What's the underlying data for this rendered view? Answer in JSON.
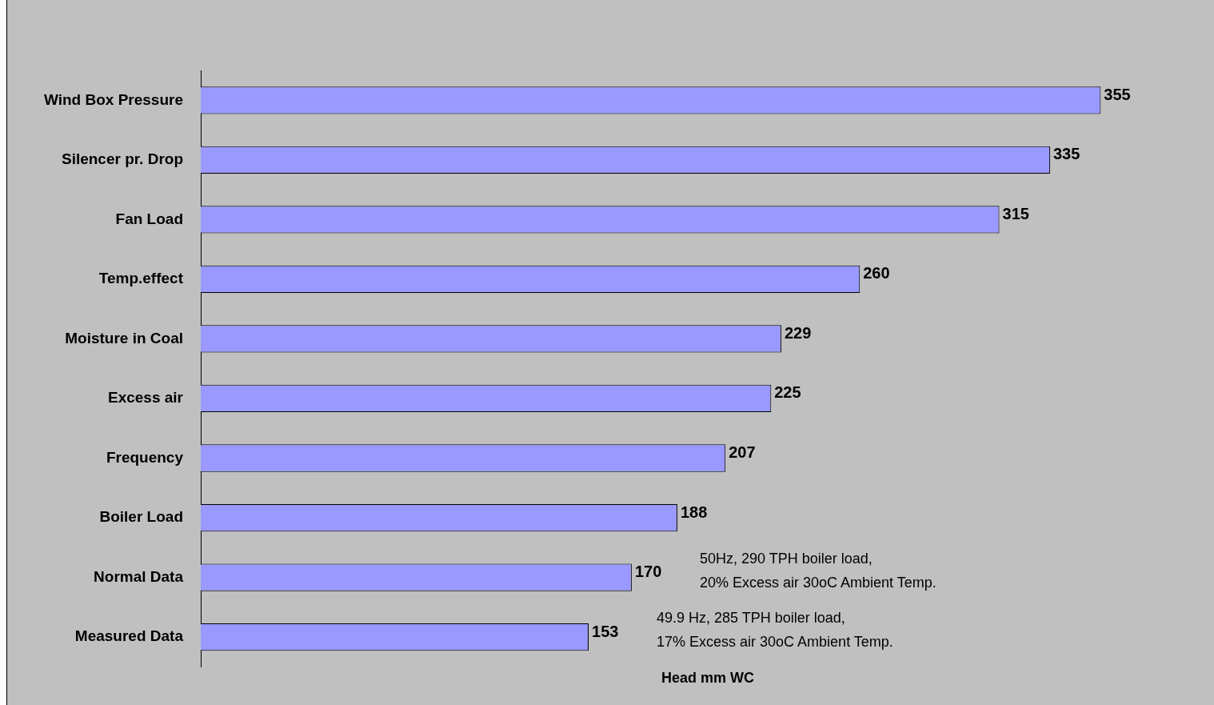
{
  "chart_data": {
    "type": "bar",
    "orientation": "horizontal",
    "xlabel": "Head mm WC",
    "categories": [
      "Wind Box Pressure",
      "Silencer pr. Drop",
      "Fan Load",
      "Temp.effect",
      "Moisture in Coal",
      "Excess air",
      "Frequency",
      "Boiler Load",
      "Normal Data",
      "Measured Data"
    ],
    "values": [
      355,
      335,
      315,
      260,
      229,
      225,
      207,
      188,
      170,
      153
    ],
    "color": "#9999ff",
    "xlim": [
      0,
      400
    ],
    "data_labels": true,
    "grid": false,
    "legend": false,
    "tick_labels": "y",
    "annotations": [
      "50Hz, 290 TPH boiler load,\n20% Excess air 30oC Ambient Temp.",
      "49.9 Hz, 285 TPH boiler load,\n17% Excess air 30oC Ambient Temp."
    ]
  }
}
